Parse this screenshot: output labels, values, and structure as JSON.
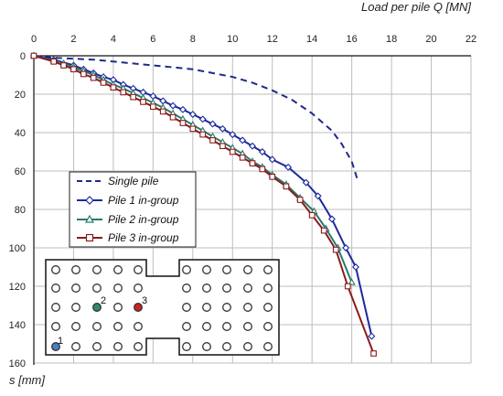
{
  "chart_data": {
    "type": "line",
    "xlabel": "Load per pile Q [MN]",
    "ylabel": "s [mm]",
    "xlim": [
      0,
      22
    ],
    "ylim": [
      0,
      160
    ],
    "y_inverted": true,
    "x_axis_position": "top",
    "grid": true,
    "x_ticks": [
      "0",
      "2",
      "4",
      "6",
      "8",
      "10",
      "12",
      "14",
      "16",
      "18",
      "20",
      "22"
    ],
    "y_ticks": [
      "0",
      "20",
      "40",
      "60",
      "80",
      "100",
      "120",
      "140",
      "160"
    ],
    "legend_position": "left-middle",
    "series": [
      {
        "name": "Single pile",
        "color": "#1f2a8a",
        "style": "dashed",
        "marker": "none",
        "points": [
          [
            0,
            0
          ],
          [
            1,
            1
          ],
          [
            2,
            1.5
          ],
          [
            3,
            2
          ],
          [
            4,
            3
          ],
          [
            5,
            4
          ],
          [
            6,
            5
          ],
          [
            7,
            6
          ],
          [
            8,
            7
          ],
          [
            9,
            9
          ],
          [
            10,
            11
          ],
          [
            11,
            14
          ],
          [
            12,
            18
          ],
          [
            13,
            23
          ],
          [
            14,
            30
          ],
          [
            15,
            39
          ],
          [
            15.5,
            46
          ],
          [
            16,
            55
          ],
          [
            16.3,
            65
          ]
        ]
      },
      {
        "name": "Pile 1 in-group",
        "color": "#1c2a9e",
        "style": "solid",
        "marker": "diamond",
        "points": [
          [
            0,
            0
          ],
          [
            1,
            2
          ],
          [
            2,
            5
          ],
          [
            2.5,
            7
          ],
          [
            3,
            9
          ],
          [
            3.5,
            11
          ],
          [
            4,
            12.5
          ],
          [
            4.5,
            15
          ],
          [
            5,
            17
          ],
          [
            5.5,
            19
          ],
          [
            6,
            21
          ],
          [
            6.5,
            23.5
          ],
          [
            7,
            26
          ],
          [
            7.5,
            28
          ],
          [
            8,
            30.5
          ],
          [
            8.5,
            33
          ],
          [
            9,
            35.5
          ],
          [
            9.5,
            38
          ],
          [
            10,
            41
          ],
          [
            10.5,
            44
          ],
          [
            11,
            47
          ],
          [
            11.5,
            50
          ],
          [
            12,
            54
          ],
          [
            12.8,
            58
          ],
          [
            13.7,
            66
          ],
          [
            14.3,
            73
          ],
          [
            15,
            85
          ],
          [
            15.7,
            100
          ],
          [
            16.2,
            110
          ],
          [
            17,
            146
          ]
        ]
      },
      {
        "name": "Pile 2 in-group",
        "color": "#2a7a6c",
        "style": "solid",
        "marker": "triangle",
        "points": [
          [
            0,
            0
          ],
          [
            1,
            2.5
          ],
          [
            1.5,
            4
          ],
          [
            2,
            6
          ],
          [
            2.5,
            8
          ],
          [
            3,
            10
          ],
          [
            3.5,
            12.5
          ],
          [
            4,
            15
          ],
          [
            4.5,
            17
          ],
          [
            5,
            19.5
          ],
          [
            5.5,
            22
          ],
          [
            6,
            24.5
          ],
          [
            6.5,
            27
          ],
          [
            7,
            30
          ],
          [
            7.5,
            33
          ],
          [
            8,
            36
          ],
          [
            8.5,
            39
          ],
          [
            9,
            42
          ],
          [
            9.5,
            45
          ],
          [
            10,
            48
          ],
          [
            10.5,
            51
          ],
          [
            11,
            55
          ],
          [
            11.5,
            58
          ],
          [
            12,
            62
          ],
          [
            12.7,
            67
          ],
          [
            13.4,
            74
          ],
          [
            14.1,
            81
          ],
          [
            14.7,
            90
          ],
          [
            15.3,
            100
          ],
          [
            16,
            118
          ]
        ]
      },
      {
        "name": "Pile 3 in-group",
        "color": "#8a1c1c",
        "style": "solid",
        "marker": "square",
        "points": [
          [
            0,
            0
          ],
          [
            1,
            3
          ],
          [
            1.5,
            5
          ],
          [
            2,
            7
          ],
          [
            2.5,
            9.5
          ],
          [
            3,
            11.5
          ],
          [
            3.5,
            14
          ],
          [
            4,
            16.5
          ],
          [
            4.5,
            19
          ],
          [
            5,
            21.5
          ],
          [
            5.5,
            24
          ],
          [
            6,
            26.5
          ],
          [
            6.5,
            29
          ],
          [
            7,
            32
          ],
          [
            7.5,
            35
          ],
          [
            8,
            38
          ],
          [
            8.5,
            41
          ],
          [
            9,
            44
          ],
          [
            9.5,
            47
          ],
          [
            10,
            50
          ],
          [
            10.5,
            53
          ],
          [
            11,
            56
          ],
          [
            11.5,
            59
          ],
          [
            12,
            63
          ],
          [
            12.7,
            68
          ],
          [
            13.4,
            75
          ],
          [
            14,
            83
          ],
          [
            14.6,
            91
          ],
          [
            15.2,
            101
          ],
          [
            15.8,
            120
          ],
          [
            17.1,
            155
          ]
        ]
      }
    ]
  },
  "inset": {
    "pile_labels": {
      "pile1": "1",
      "pile2": "2",
      "pile3": "3"
    },
    "colors": {
      "pile1": "#4a7fc1",
      "pile2": "#2e8b6e",
      "pile3": "#d02020",
      "outline": "#111111"
    }
  }
}
